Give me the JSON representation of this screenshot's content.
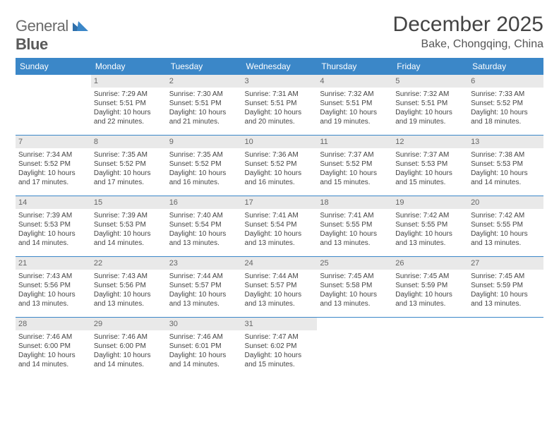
{
  "logo": {
    "part1": "General",
    "part2": "Blue"
  },
  "title": "December 2025",
  "location": "Bake, Chongqing, China",
  "header_bg": "#3b87c8",
  "header_fg": "#ffffff",
  "daynum_bg": "#e9e9e9",
  "rule_color": "#3b87c8",
  "weekdays": [
    "Sunday",
    "Monday",
    "Tuesday",
    "Wednesday",
    "Thursday",
    "Friday",
    "Saturday"
  ],
  "weeks": [
    [
      {
        "n": "",
        "sr": "",
        "ss": "",
        "dl1": "",
        "dl2": ""
      },
      {
        "n": "1",
        "sr": "Sunrise: 7:29 AM",
        "ss": "Sunset: 5:51 PM",
        "dl1": "Daylight: 10 hours",
        "dl2": "and 22 minutes."
      },
      {
        "n": "2",
        "sr": "Sunrise: 7:30 AM",
        "ss": "Sunset: 5:51 PM",
        "dl1": "Daylight: 10 hours",
        "dl2": "and 21 minutes."
      },
      {
        "n": "3",
        "sr": "Sunrise: 7:31 AM",
        "ss": "Sunset: 5:51 PM",
        "dl1": "Daylight: 10 hours",
        "dl2": "and 20 minutes."
      },
      {
        "n": "4",
        "sr": "Sunrise: 7:32 AM",
        "ss": "Sunset: 5:51 PM",
        "dl1": "Daylight: 10 hours",
        "dl2": "and 19 minutes."
      },
      {
        "n": "5",
        "sr": "Sunrise: 7:32 AM",
        "ss": "Sunset: 5:51 PM",
        "dl1": "Daylight: 10 hours",
        "dl2": "and 19 minutes."
      },
      {
        "n": "6",
        "sr": "Sunrise: 7:33 AM",
        "ss": "Sunset: 5:52 PM",
        "dl1": "Daylight: 10 hours",
        "dl2": "and 18 minutes."
      }
    ],
    [
      {
        "n": "7",
        "sr": "Sunrise: 7:34 AM",
        "ss": "Sunset: 5:52 PM",
        "dl1": "Daylight: 10 hours",
        "dl2": "and 17 minutes."
      },
      {
        "n": "8",
        "sr": "Sunrise: 7:35 AM",
        "ss": "Sunset: 5:52 PM",
        "dl1": "Daylight: 10 hours",
        "dl2": "and 17 minutes."
      },
      {
        "n": "9",
        "sr": "Sunrise: 7:35 AM",
        "ss": "Sunset: 5:52 PM",
        "dl1": "Daylight: 10 hours",
        "dl2": "and 16 minutes."
      },
      {
        "n": "10",
        "sr": "Sunrise: 7:36 AM",
        "ss": "Sunset: 5:52 PM",
        "dl1": "Daylight: 10 hours",
        "dl2": "and 16 minutes."
      },
      {
        "n": "11",
        "sr": "Sunrise: 7:37 AM",
        "ss": "Sunset: 5:52 PM",
        "dl1": "Daylight: 10 hours",
        "dl2": "and 15 minutes."
      },
      {
        "n": "12",
        "sr": "Sunrise: 7:37 AM",
        "ss": "Sunset: 5:53 PM",
        "dl1": "Daylight: 10 hours",
        "dl2": "and 15 minutes."
      },
      {
        "n": "13",
        "sr": "Sunrise: 7:38 AM",
        "ss": "Sunset: 5:53 PM",
        "dl1": "Daylight: 10 hours",
        "dl2": "and 14 minutes."
      }
    ],
    [
      {
        "n": "14",
        "sr": "Sunrise: 7:39 AM",
        "ss": "Sunset: 5:53 PM",
        "dl1": "Daylight: 10 hours",
        "dl2": "and 14 minutes."
      },
      {
        "n": "15",
        "sr": "Sunrise: 7:39 AM",
        "ss": "Sunset: 5:53 PM",
        "dl1": "Daylight: 10 hours",
        "dl2": "and 14 minutes."
      },
      {
        "n": "16",
        "sr": "Sunrise: 7:40 AM",
        "ss": "Sunset: 5:54 PM",
        "dl1": "Daylight: 10 hours",
        "dl2": "and 13 minutes."
      },
      {
        "n": "17",
        "sr": "Sunrise: 7:41 AM",
        "ss": "Sunset: 5:54 PM",
        "dl1": "Daylight: 10 hours",
        "dl2": "and 13 minutes."
      },
      {
        "n": "18",
        "sr": "Sunrise: 7:41 AM",
        "ss": "Sunset: 5:55 PM",
        "dl1": "Daylight: 10 hours",
        "dl2": "and 13 minutes."
      },
      {
        "n": "19",
        "sr": "Sunrise: 7:42 AM",
        "ss": "Sunset: 5:55 PM",
        "dl1": "Daylight: 10 hours",
        "dl2": "and 13 minutes."
      },
      {
        "n": "20",
        "sr": "Sunrise: 7:42 AM",
        "ss": "Sunset: 5:55 PM",
        "dl1": "Daylight: 10 hours",
        "dl2": "and 13 minutes."
      }
    ],
    [
      {
        "n": "21",
        "sr": "Sunrise: 7:43 AM",
        "ss": "Sunset: 5:56 PM",
        "dl1": "Daylight: 10 hours",
        "dl2": "and 13 minutes."
      },
      {
        "n": "22",
        "sr": "Sunrise: 7:43 AM",
        "ss": "Sunset: 5:56 PM",
        "dl1": "Daylight: 10 hours",
        "dl2": "and 13 minutes."
      },
      {
        "n": "23",
        "sr": "Sunrise: 7:44 AM",
        "ss": "Sunset: 5:57 PM",
        "dl1": "Daylight: 10 hours",
        "dl2": "and 13 minutes."
      },
      {
        "n": "24",
        "sr": "Sunrise: 7:44 AM",
        "ss": "Sunset: 5:57 PM",
        "dl1": "Daylight: 10 hours",
        "dl2": "and 13 minutes."
      },
      {
        "n": "25",
        "sr": "Sunrise: 7:45 AM",
        "ss": "Sunset: 5:58 PM",
        "dl1": "Daylight: 10 hours",
        "dl2": "and 13 minutes."
      },
      {
        "n": "26",
        "sr": "Sunrise: 7:45 AM",
        "ss": "Sunset: 5:59 PM",
        "dl1": "Daylight: 10 hours",
        "dl2": "and 13 minutes."
      },
      {
        "n": "27",
        "sr": "Sunrise: 7:45 AM",
        "ss": "Sunset: 5:59 PM",
        "dl1": "Daylight: 10 hours",
        "dl2": "and 13 minutes."
      }
    ],
    [
      {
        "n": "28",
        "sr": "Sunrise: 7:46 AM",
        "ss": "Sunset: 6:00 PM",
        "dl1": "Daylight: 10 hours",
        "dl2": "and 14 minutes."
      },
      {
        "n": "29",
        "sr": "Sunrise: 7:46 AM",
        "ss": "Sunset: 6:00 PM",
        "dl1": "Daylight: 10 hours",
        "dl2": "and 14 minutes."
      },
      {
        "n": "30",
        "sr": "Sunrise: 7:46 AM",
        "ss": "Sunset: 6:01 PM",
        "dl1": "Daylight: 10 hours",
        "dl2": "and 14 minutes."
      },
      {
        "n": "31",
        "sr": "Sunrise: 7:47 AM",
        "ss": "Sunset: 6:02 PM",
        "dl1": "Daylight: 10 hours",
        "dl2": "and 15 minutes."
      },
      {
        "n": "",
        "sr": "",
        "ss": "",
        "dl1": "",
        "dl2": ""
      },
      {
        "n": "",
        "sr": "",
        "ss": "",
        "dl1": "",
        "dl2": ""
      },
      {
        "n": "",
        "sr": "",
        "ss": "",
        "dl1": "",
        "dl2": ""
      }
    ]
  ]
}
